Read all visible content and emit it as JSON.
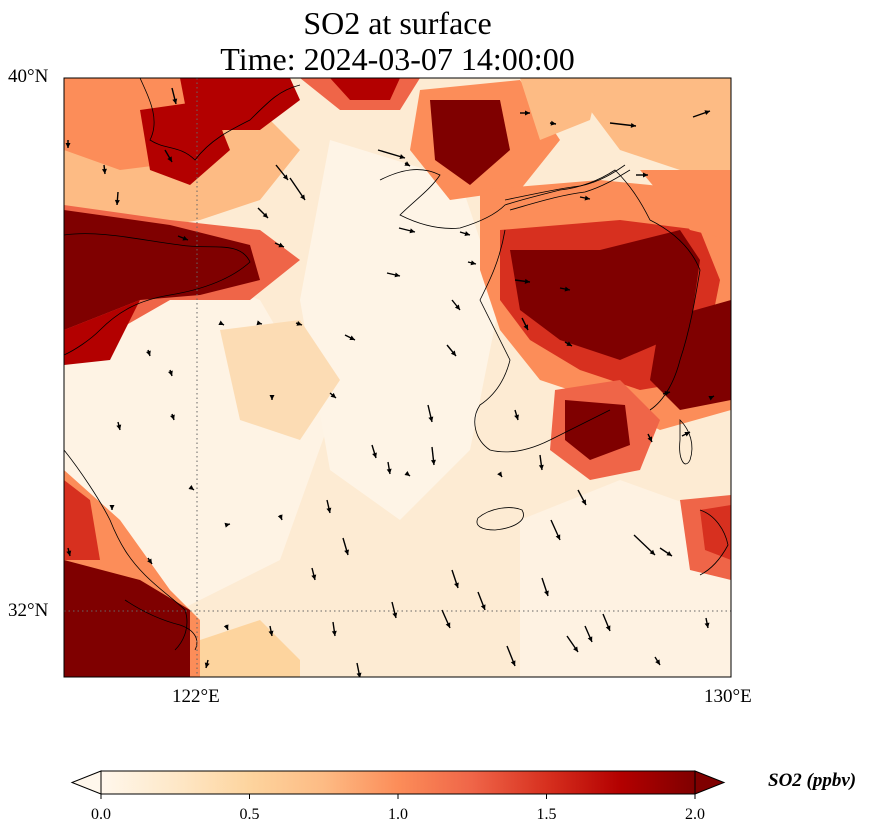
{
  "title": {
    "line1": "SO2 at surface",
    "line2": "Time: 2024-03-07 14:00:00"
  },
  "map": {
    "lon_range": [
      120,
      130
    ],
    "lat_range": [
      31,
      40
    ],
    "lat_ticks": [
      {
        "value": 40,
        "label": "40°N"
      },
      {
        "value": 32,
        "label": "32°N"
      }
    ],
    "lon_ticks": [
      {
        "value": 122,
        "label": "122°E"
      },
      {
        "value": 130,
        "label": "130°E"
      }
    ],
    "gridlines": "dotted at 122°E and 32°N",
    "field": "SO2 concentration",
    "wind_vectors": true
  },
  "colorbar": {
    "label": "SO2 (ppbv)",
    "ticks": [
      "0.0",
      "0.5",
      "1.0",
      "1.5",
      "2.0"
    ],
    "range": [
      0,
      2
    ],
    "extend": "both",
    "colormap": [
      "#fff7ec",
      "#fee8c8",
      "#fdd49e",
      "#fdbb84",
      "#fc8d59",
      "#ef6548",
      "#d7301f",
      "#b30000",
      "#7f0000"
    ]
  }
}
